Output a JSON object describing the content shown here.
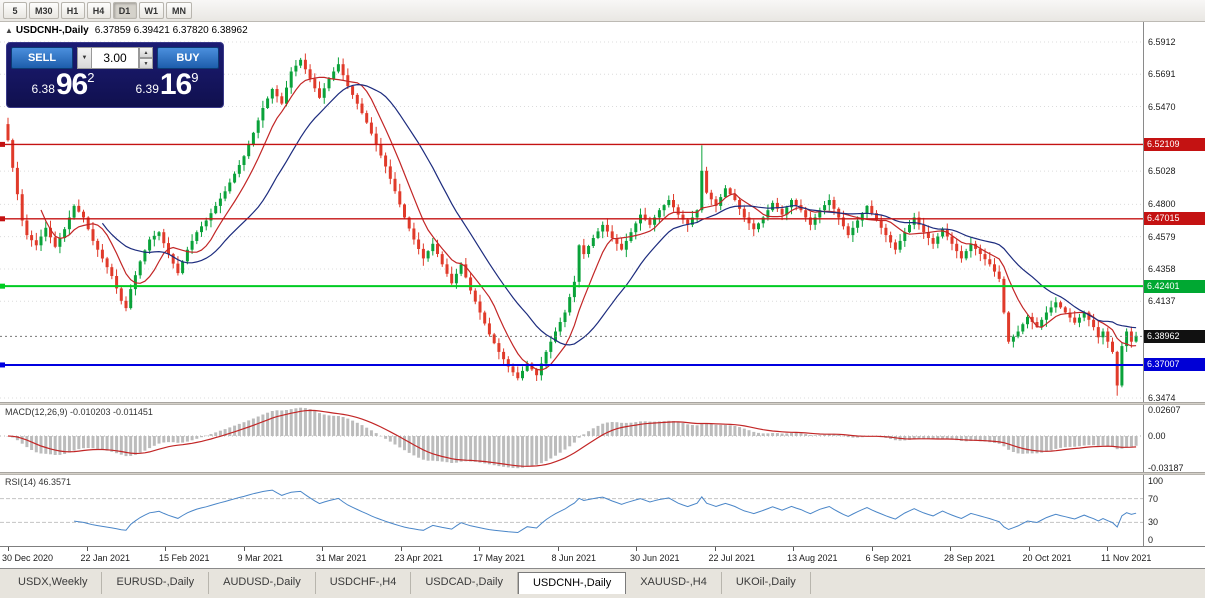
{
  "toolbar": {
    "periods": [
      "5",
      "M30",
      "H1",
      "H4",
      "D1",
      "W1",
      "MN"
    ],
    "active_period": "D1"
  },
  "chart_header": {
    "collapse_icon": "▲",
    "title": "USDCNH-,Daily",
    "ohlc": "6.37859 6.39421 6.37820 6.38962"
  },
  "trade_panel": {
    "sell_label": "SELL",
    "buy_label": "BUY",
    "volume": "3.00",
    "dropdown_icon": "▼",
    "spin_up_icon": "▲",
    "spin_down_icon": "▼",
    "sell_price": {
      "small": "6.38",
      "big": "96",
      "sup": "2"
    },
    "buy_price": {
      "small": "6.39",
      "big": "16",
      "sup": "9"
    }
  },
  "price_axis": {
    "labels": [
      {
        "text": "6.5912",
        "price": 6.5912
      },
      {
        "text": "6.5691",
        "price": 6.5691
      },
      {
        "text": "6.5470",
        "price": 6.547
      },
      {
        "text": "6.5028",
        "price": 6.5028
      },
      {
        "text": "6.4800",
        "price": 6.48
      },
      {
        "text": "6.4579",
        "price": 6.4579
      },
      {
        "text": "6.4358",
        "price": 6.4358
      },
      {
        "text": "6.4137",
        "price": 6.4137
      },
      {
        "text": "6.3474",
        "price": 6.3474
      }
    ],
    "tags": [
      {
        "text": "6.52109",
        "price": 6.52109,
        "color": "#c41212"
      },
      {
        "text": "6.47015",
        "price": 6.47015,
        "color": "#c41212"
      },
      {
        "text": "6.42401",
        "price": 6.42401,
        "color": "#00a832"
      },
      {
        "text": "6.38962",
        "price": 6.38962,
        "color": "#111111"
      },
      {
        "text": "6.37007",
        "price": 6.37007,
        "color": "#0000d6"
      }
    ]
  },
  "macd_panel": {
    "label": "MACD(12,26,9) -0.010203 -0.011451",
    "axis_labels": [
      {
        "text": "0.02607",
        "value": 0.02607
      },
      {
        "text": "0.00",
        "value": 0
      },
      {
        "text": "-0.03187",
        "value": -0.03187
      }
    ]
  },
  "rsi_panel": {
    "label": "RSI(14) 46.3571",
    "axis_labels": [
      {
        "text": "100",
        "value": 100
      },
      {
        "text": "70",
        "value": 70
      },
      {
        "text": "30",
        "value": 30
      },
      {
        "text": "0",
        "value": 0
      }
    ],
    "levels": [
      70,
      30
    ]
  },
  "date_axis": [
    "30 Dec 2020",
    "22 Jan 2021",
    "15 Feb 2021",
    "9 Mar 2021",
    "31 Mar 2021",
    "23 Apr 2021",
    "17 May 2021",
    "8 Jun 2021",
    "30 Jun 2021",
    "22 Jul 2021",
    "13 Aug 2021",
    "6 Sep 2021",
    "28 Sep 2021",
    "20 Oct 2021",
    "11 Nov 2021"
  ],
  "tabs": {
    "items": [
      {
        "label": "USDX,Weekly",
        "active": false
      },
      {
        "label": "EURUSD-,Daily",
        "active": false
      },
      {
        "label": "AUDUSD-,Daily",
        "active": false
      },
      {
        "label": "USDCHF-,H4",
        "active": false
      },
      {
        "label": "USDCAD-,Daily",
        "active": false
      },
      {
        "label": "USDCNH-,Daily",
        "active": true
      },
      {
        "label": "XAUUSD-,H4",
        "active": false
      },
      {
        "label": "UKOil-,Daily",
        "active": false
      }
    ]
  },
  "chart_data": {
    "type": "candlestick",
    "symbol": "USDCNH-",
    "timeframe": "Daily",
    "ohlc_current": {
      "open": 6.37859,
      "high": 6.39421,
      "low": 6.3782,
      "close": 6.38962
    },
    "current_price": 6.38962,
    "y_range": [
      6.3447,
      6.6049
    ],
    "num_candles": 240,
    "first_open": 6.535,
    "close_keypoints": [
      [
        0,
        6.524
      ],
      [
        1,
        6.505
      ],
      [
        2,
        6.487
      ],
      [
        3,
        6.469
      ],
      [
        4,
        6.459
      ],
      [
        6,
        6.452
      ],
      [
        8,
        6.464
      ],
      [
        10,
        6.451
      ],
      [
        12,
        6.463
      ],
      [
        14,
        6.479
      ],
      [
        16,
        6.471
      ],
      [
        18,
        6.455
      ],
      [
        20,
        6.443
      ],
      [
        22,
        6.431
      ],
      [
        24,
        6.414
      ],
      [
        25,
        6.409
      ],
      [
        26,
        6.422
      ],
      [
        28,
        6.441
      ],
      [
        30,
        6.456
      ],
      [
        32,
        6.461
      ],
      [
        34,
        6.446
      ],
      [
        36,
        6.433
      ],
      [
        38,
        6.449
      ],
      [
        40,
        6.461
      ],
      [
        42,
        6.469
      ],
      [
        44,
        6.479
      ],
      [
        46,
        6.489
      ],
      [
        48,
        6.501
      ],
      [
        50,
        6.513
      ],
      [
        52,
        6.529
      ],
      [
        54,
        6.546
      ],
      [
        56,
        6.559
      ],
      [
        58,
        6.549
      ],
      [
        60,
        6.571
      ],
      [
        62,
        6.579
      ],
      [
        64,
        6.566
      ],
      [
        66,
        6.553
      ],
      [
        68,
        6.566
      ],
      [
        70,
        6.576
      ],
      [
        72,
        6.561
      ],
      [
        74,
        6.549
      ],
      [
        76,
        6.536
      ],
      [
        78,
        6.521
      ],
      [
        80,
        6.506
      ],
      [
        82,
        6.489
      ],
      [
        84,
        6.471
      ],
      [
        86,
        6.456
      ],
      [
        88,
        6.443
      ],
      [
        90,
        6.453
      ],
      [
        92,
        6.439
      ],
      [
        94,
        6.426
      ],
      [
        96,
        6.439
      ],
      [
        98,
        6.421
      ],
      [
        100,
        6.406
      ],
      [
        102,
        6.391
      ],
      [
        104,
        6.379
      ],
      [
        106,
        6.369
      ],
      [
        108,
        6.361
      ],
      [
        110,
        6.371
      ],
      [
        112,
        6.363
      ],
      [
        114,
        6.379
      ],
      [
        116,
        6.393
      ],
      [
        118,
        6.406
      ],
      [
        120,
        6.427
      ],
      [
        121,
        6.452
      ],
      [
        122,
        6.446
      ],
      [
        124,
        6.457
      ],
      [
        126,
        6.466
      ],
      [
        128,
        6.457
      ],
      [
        130,
        6.449
      ],
      [
        132,
        6.461
      ],
      [
        134,
        6.473
      ],
      [
        136,
        6.466
      ],
      [
        138,
        6.476
      ],
      [
        140,
        6.483
      ],
      [
        142,
        6.473
      ],
      [
        144,
        6.466
      ],
      [
        146,
        6.476
      ],
      [
        147,
        6.503
      ],
      [
        148,
        6.488
      ],
      [
        150,
        6.479
      ],
      [
        152,
        6.491
      ],
      [
        154,
        6.483
      ],
      [
        156,
        6.471
      ],
      [
        158,
        6.463
      ],
      [
        160,
        6.471
      ],
      [
        162,
        6.481
      ],
      [
        164,
        6.473
      ],
      [
        166,
        6.483
      ],
      [
        168,
        6.476
      ],
      [
        170,
        6.466
      ],
      [
        172,
        6.476
      ],
      [
        174,
        6.483
      ],
      [
        176,
        6.471
      ],
      [
        178,
        6.459
      ],
      [
        180,
        6.469
      ],
      [
        182,
        6.479
      ],
      [
        184,
        6.469
      ],
      [
        186,
        6.459
      ],
      [
        188,
        6.449
      ],
      [
        190,
        6.461
      ],
      [
        192,
        6.471
      ],
      [
        194,
        6.461
      ],
      [
        196,
        6.453
      ],
      [
        198,
        6.463
      ],
      [
        200,
        6.453
      ],
      [
        202,
        6.443
      ],
      [
        204,
        6.453
      ],
      [
        206,
        6.446
      ],
      [
        208,
        6.439
      ],
      [
        210,
        6.429
      ],
      [
        211,
        6.406
      ],
      [
        212,
        6.386
      ],
      [
        214,
        6.393
      ],
      [
        216,
        6.403
      ],
      [
        218,
        6.396
      ],
      [
        220,
        6.406
      ],
      [
        222,
        6.413
      ],
      [
        224,
        6.406
      ],
      [
        226,
        6.399
      ],
      [
        228,
        6.406
      ],
      [
        230,
        6.396
      ],
      [
        231,
        6.389
      ],
      [
        232,
        6.393
      ],
      [
        233,
        6.386
      ],
      [
        234,
        6.379
      ],
      [
        235,
        6.356
      ],
      [
        236,
        6.383
      ],
      [
        237,
        6.393
      ],
      [
        238,
        6.386
      ],
      [
        239,
        6.39
      ]
    ],
    "wick_overrides": [
      {
        "i": 147,
        "high": 6.5205
      },
      {
        "i": 235,
        "low": 6.349
      }
    ],
    "hlines": [
      {
        "price": 6.52109,
        "color": "#c41212",
        "width": 1.4
      },
      {
        "price": 6.47015,
        "color": "#c41212",
        "width": 1.4
      },
      {
        "price": 6.42401,
        "color": "#00cc22",
        "width": 2
      },
      {
        "price": 6.37007,
        "color": "#0000e0",
        "width": 2
      }
    ],
    "overlays": [
      {
        "name": "MA fast",
        "period": 8,
        "color": "#c22626"
      },
      {
        "name": "MA slow",
        "period": 21,
        "color": "#1d2c7e"
      }
    ],
    "colors": {
      "up": "#0aa23a",
      "down": "#e03a2a",
      "macd_hist": "#bcbcbc",
      "macd_signal": "#c22626",
      "rsi": "#4a86c8",
      "grid": "#dcdcdc"
    }
  }
}
